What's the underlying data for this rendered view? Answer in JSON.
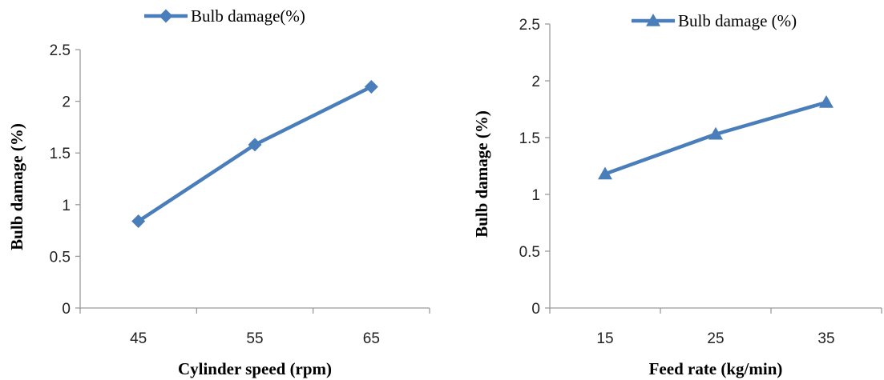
{
  "colors": {
    "series": "#4a7ebb"
  },
  "chart_data": [
    {
      "type": "line",
      "categories": [
        "45",
        "55",
        "65"
      ],
      "series": [
        {
          "name": "Bulb  damage(%)",
          "marker": "diamond",
          "values": [
            0.84,
            1.58,
            2.14
          ]
        }
      ],
      "xlabel": "Cylinder speed (rpm)",
      "ylabel": "Bulb damage (%)",
      "ylim": [
        0,
        2.5
      ],
      "yticks": [
        "0",
        "0.5",
        "1",
        "1.5",
        "2",
        "2.5"
      ],
      "legend": "top",
      "grid": false
    },
    {
      "type": "line",
      "categories": [
        "15",
        "25",
        "35"
      ],
      "series": [
        {
          "name": "Bulb damage (%)",
          "marker": "triangle",
          "values": [
            1.18,
            1.53,
            1.81
          ]
        }
      ],
      "xlabel": "Feed rate (kg/min)",
      "ylabel": "Bulb damage (%)",
      "ylim": [
        0,
        2.5
      ],
      "yticks": [
        "0",
        "0.5",
        "1",
        "1.5",
        "2",
        "2.5"
      ],
      "legend": "top",
      "grid": false
    }
  ]
}
